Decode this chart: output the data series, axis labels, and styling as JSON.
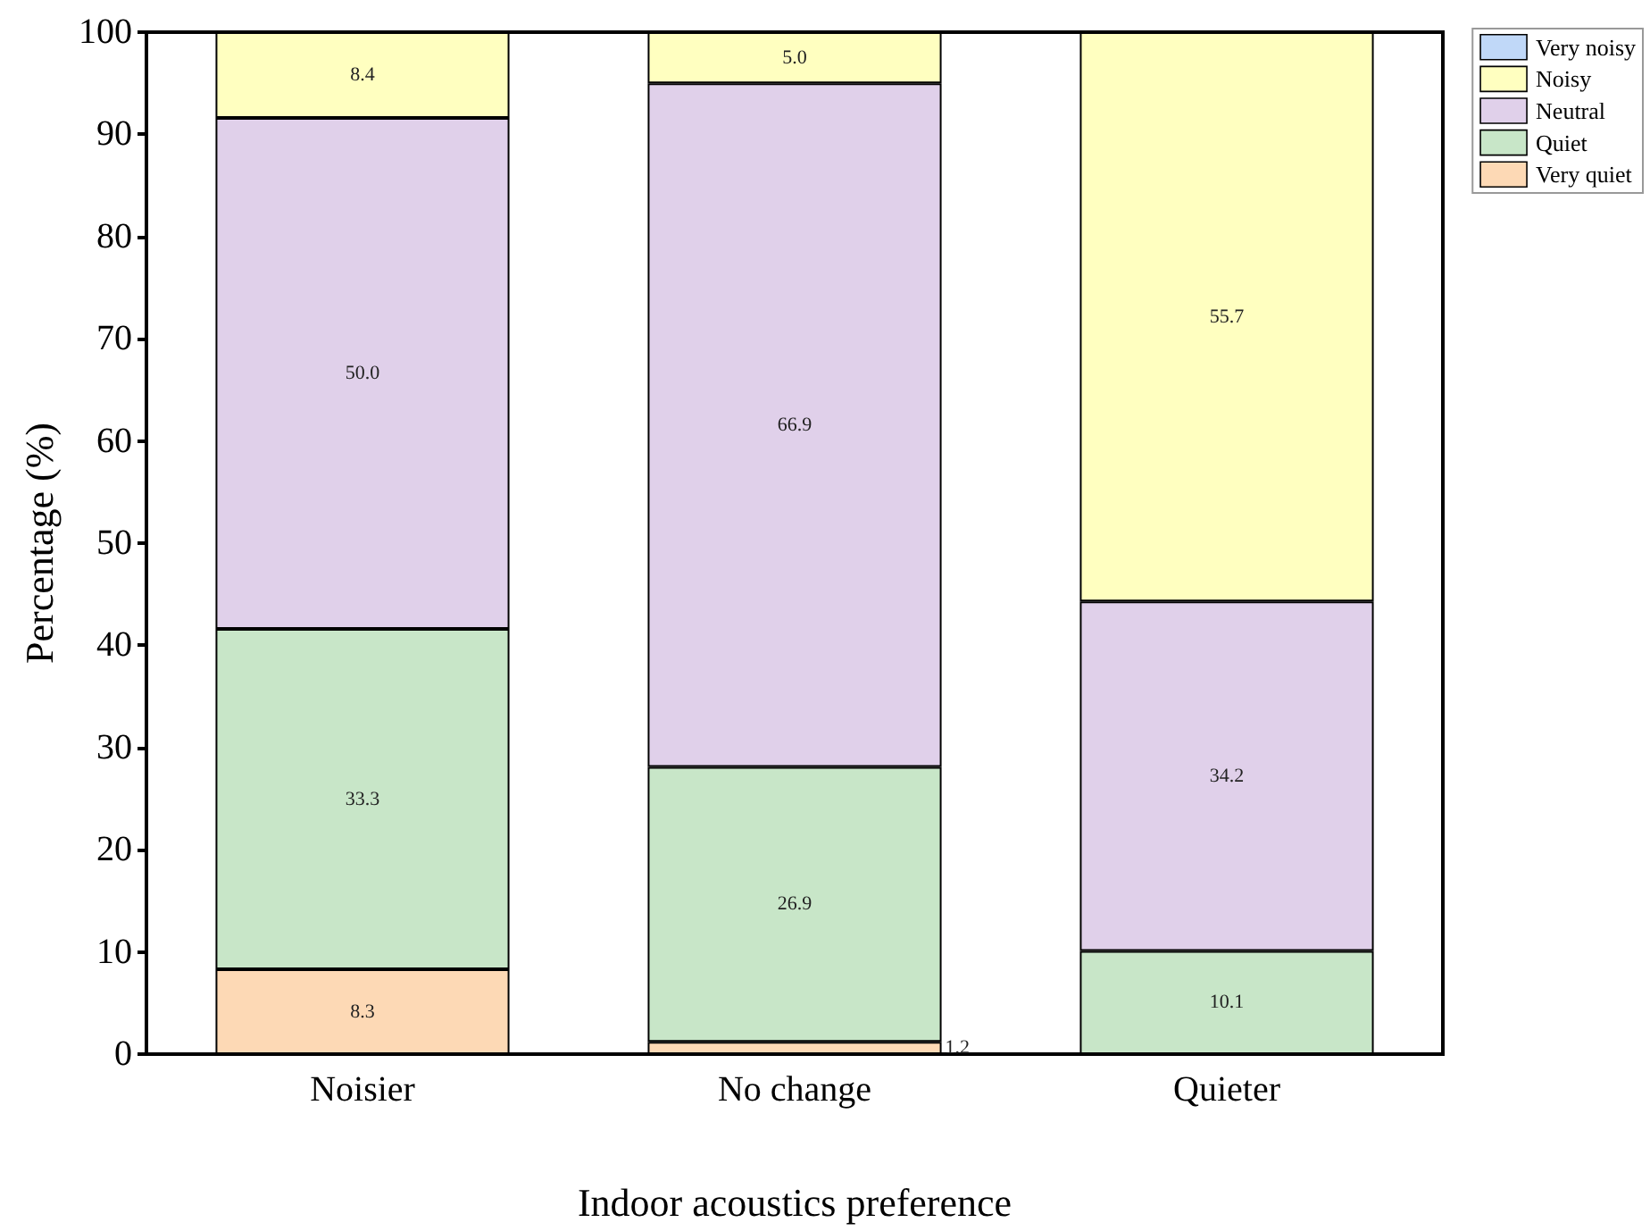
{
  "chart_data": {
    "type": "bar",
    "stacked": true,
    "xlabel": "Indoor acoustics preference",
    "ylabel": "Percentage (%)",
    "categories": [
      "Noisier",
      "No change",
      "Quieter"
    ],
    "series": [
      {
        "name": "Very quiet",
        "color": "#fdd9b5",
        "values": [
          8.3,
          1.2,
          0
        ],
        "value_labels": [
          "8.3",
          "1.2",
          null
        ]
      },
      {
        "name": "Quiet",
        "color": "#c8e6c8",
        "values": [
          33.3,
          26.9,
          10.1
        ],
        "value_labels": [
          "33.3",
          "26.9",
          "10.1"
        ]
      },
      {
        "name": "Neutral",
        "color": "#e0d0ea",
        "values": [
          50.0,
          66.9,
          34.2
        ],
        "value_labels": [
          "50.0",
          "66.9",
          "34.2"
        ]
      },
      {
        "name": "Noisy",
        "color": "#ffffc0",
        "values": [
          8.4,
          5.0,
          55.7
        ],
        "value_labels": [
          "8.4",
          "5.0",
          "55.7"
        ]
      },
      {
        "name": "Very noisy",
        "color": "#c0d8f8",
        "values": [
          0,
          0,
          0
        ],
        "value_labels": [
          null,
          null,
          null
        ]
      }
    ],
    "ylim": [
      0,
      100
    ],
    "yticks": [
      0,
      10,
      20,
      30,
      40,
      50,
      60,
      70,
      80,
      90,
      100
    ],
    "grid": false,
    "legend": "top right"
  }
}
